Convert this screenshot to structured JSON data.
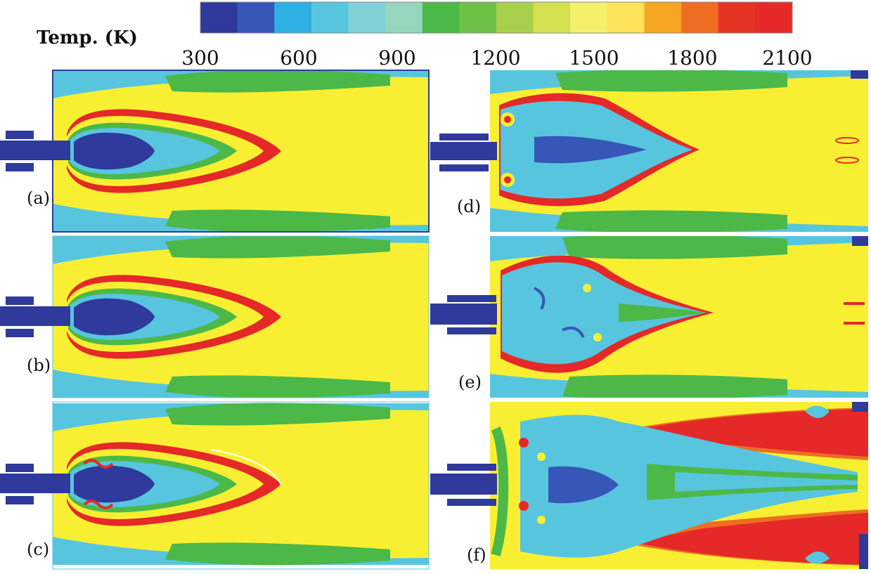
{
  "colorbar": {
    "title": "Temp. (K)",
    "ticks": [
      "300",
      "600",
      "900",
      "1200",
      "1500",
      "1800",
      "2100"
    ],
    "colors": [
      "#2f3a9c",
      "#3657b8",
      "#2fb0e4",
      "#58c5df",
      "#7fd1d6",
      "#96d6bf",
      "#4cb848",
      "#6fc047",
      "#a9d04c",
      "#d4e04f",
      "#f5f06b",
      "#fde25a",
      "#f6a623",
      "#ef6d22",
      "#e53424",
      "#e52828"
    ]
  },
  "colors": {
    "cold": "#2f3a9c",
    "cyan": "#58c5df",
    "green": "#4cb848",
    "lightgreen": "#8ec94a",
    "yellow": "#f9ef32",
    "orange": "#f08a24",
    "red": "#e52828"
  },
  "panels": [
    {
      "id": "a",
      "label": "(a)"
    },
    {
      "id": "b",
      "label": "(b)"
    },
    {
      "id": "c",
      "label": "(c)"
    },
    {
      "id": "d",
      "label": "(d)"
    },
    {
      "id": "e",
      "label": "(e)"
    },
    {
      "id": "f",
      "label": "(f)"
    }
  ]
}
